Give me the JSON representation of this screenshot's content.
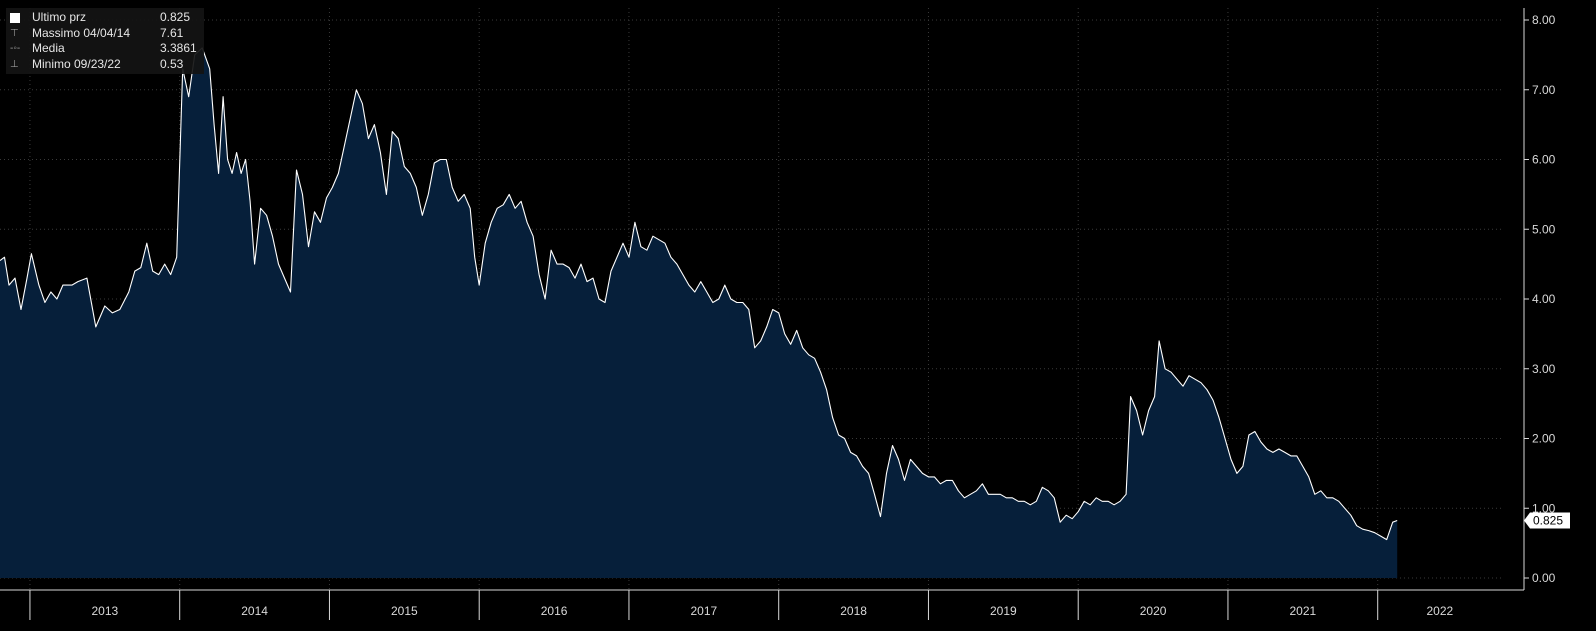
{
  "legend": {
    "rows": [
      {
        "label": "Ultimo prz",
        "value": "0.825",
        "marker": "last-price-swatch"
      },
      {
        "label": "Massimo 04/04/14",
        "value": "7.61",
        "marker": "max-marker-icon"
      },
      {
        "label": "Media",
        "value": "3.3861",
        "marker": "mean-marker-icon"
      },
      {
        "label": "Minimo 09/23/22",
        "value": "0.53",
        "marker": "min-marker-icon"
      }
    ]
  },
  "colors": {
    "background": "#000000",
    "area": "#061f3a",
    "line": "#ffffff",
    "grid": "#3a3a3a",
    "axis": "#d9d9d9",
    "tag_bg": "#ffffff",
    "tag_text": "#000000"
  },
  "chart_data": {
    "type": "area",
    "ylim": [
      0,
      8
    ],
    "y_ticks": [
      "0.00",
      "1.00",
      "2.00",
      "3.00",
      "4.00",
      "5.00",
      "6.00",
      "7.00",
      "8.00"
    ],
    "x_ticks": [
      "2013",
      "2014",
      "2015",
      "2016",
      "2017",
      "2018",
      "2019",
      "2020",
      "2021",
      "2022"
    ],
    "xlim": [
      2012.8,
      2022.83
    ],
    "last_value_label": "0.825",
    "grid": true,
    "series": [
      {
        "points": [
          [
            2012.8,
            4.55
          ],
          [
            2012.83,
            4.6
          ],
          [
            2012.86,
            4.2
          ],
          [
            2012.9,
            4.3
          ],
          [
            2012.94,
            3.85
          ],
          [
            2012.98,
            4.3
          ],
          [
            2013.01,
            4.65
          ],
          [
            2013.06,
            4.2
          ],
          [
            2013.1,
            3.95
          ],
          [
            2013.14,
            4.1
          ],
          [
            2013.18,
            4.0
          ],
          [
            2013.22,
            4.2
          ],
          [
            2013.28,
            4.2
          ],
          [
            2013.32,
            4.25
          ],
          [
            2013.38,
            4.3
          ],
          [
            2013.44,
            3.6
          ],
          [
            2013.5,
            3.9
          ],
          [
            2013.55,
            3.8
          ],
          [
            2013.6,
            3.85
          ],
          [
            2013.66,
            4.1
          ],
          [
            2013.7,
            4.4
          ],
          [
            2013.74,
            4.45
          ],
          [
            2013.78,
            4.8
          ],
          [
            2013.82,
            4.4
          ],
          [
            2013.86,
            4.35
          ],
          [
            2013.9,
            4.5
          ],
          [
            2013.94,
            4.35
          ],
          [
            2013.98,
            4.6
          ],
          [
            2014.02,
            7.3
          ],
          [
            2014.06,
            6.9
          ],
          [
            2014.1,
            7.5
          ],
          [
            2014.15,
            7.6
          ],
          [
            2014.2,
            7.3
          ],
          [
            2014.23,
            6.5
          ],
          [
            2014.26,
            5.8
          ],
          [
            2014.29,
            6.9
          ],
          [
            2014.32,
            6.0
          ],
          [
            2014.35,
            5.8
          ],
          [
            2014.38,
            6.1
          ],
          [
            2014.41,
            5.8
          ],
          [
            2014.44,
            6.0
          ],
          [
            2014.47,
            5.4
          ],
          [
            2014.5,
            4.5
          ],
          [
            2014.54,
            5.3
          ],
          [
            2014.58,
            5.2
          ],
          [
            2014.62,
            4.9
          ],
          [
            2014.66,
            4.5
          ],
          [
            2014.7,
            4.3
          ],
          [
            2014.74,
            4.1
          ],
          [
            2014.78,
            5.85
          ],
          [
            2014.82,
            5.5
          ],
          [
            2014.86,
            4.75
          ],
          [
            2014.9,
            5.25
          ],
          [
            2014.94,
            5.1
          ],
          [
            2014.98,
            5.45
          ],
          [
            2015.02,
            5.6
          ],
          [
            2015.06,
            5.8
          ],
          [
            2015.1,
            6.2
          ],
          [
            2015.14,
            6.6
          ],
          [
            2015.18,
            7.0
          ],
          [
            2015.22,
            6.8
          ],
          [
            2015.26,
            6.3
          ],
          [
            2015.3,
            6.5
          ],
          [
            2015.34,
            6.1
          ],
          [
            2015.38,
            5.5
          ],
          [
            2015.42,
            6.4
          ],
          [
            2015.46,
            6.3
          ],
          [
            2015.5,
            5.9
          ],
          [
            2015.54,
            5.8
          ],
          [
            2015.58,
            5.6
          ],
          [
            2015.62,
            5.2
          ],
          [
            2015.66,
            5.5
          ],
          [
            2015.7,
            5.95
          ],
          [
            2015.74,
            6.0
          ],
          [
            2015.78,
            6.0
          ],
          [
            2015.82,
            5.6
          ],
          [
            2015.86,
            5.4
          ],
          [
            2015.9,
            5.5
          ],
          [
            2015.94,
            5.3
          ],
          [
            2015.97,
            4.6
          ],
          [
            2016.0,
            4.2
          ],
          [
            2016.04,
            4.8
          ],
          [
            2016.08,
            5.1
          ],
          [
            2016.12,
            5.3
          ],
          [
            2016.16,
            5.35
          ],
          [
            2016.2,
            5.5
          ],
          [
            2016.24,
            5.3
          ],
          [
            2016.28,
            5.4
          ],
          [
            2016.32,
            5.1
          ],
          [
            2016.36,
            4.9
          ],
          [
            2016.4,
            4.35
          ],
          [
            2016.44,
            4.0
          ],
          [
            2016.48,
            4.7
          ],
          [
            2016.52,
            4.5
          ],
          [
            2016.56,
            4.5
          ],
          [
            2016.6,
            4.45
          ],
          [
            2016.64,
            4.3
          ],
          [
            2016.68,
            4.5
          ],
          [
            2016.72,
            4.25
          ],
          [
            2016.76,
            4.3
          ],
          [
            2016.8,
            4.0
          ],
          [
            2016.84,
            3.95
          ],
          [
            2016.88,
            4.4
          ],
          [
            2016.92,
            4.6
          ],
          [
            2016.96,
            4.8
          ],
          [
            2017.0,
            4.6
          ],
          [
            2017.04,
            5.1
          ],
          [
            2017.08,
            4.75
          ],
          [
            2017.12,
            4.7
          ],
          [
            2017.16,
            4.9
          ],
          [
            2017.2,
            4.85
          ],
          [
            2017.24,
            4.8
          ],
          [
            2017.28,
            4.6
          ],
          [
            2017.32,
            4.5
          ],
          [
            2017.36,
            4.35
          ],
          [
            2017.4,
            4.2
          ],
          [
            2017.44,
            4.1
          ],
          [
            2017.48,
            4.25
          ],
          [
            2017.52,
            4.1
          ],
          [
            2017.56,
            3.95
          ],
          [
            2017.6,
            4.0
          ],
          [
            2017.64,
            4.2
          ],
          [
            2017.68,
            4.0
          ],
          [
            2017.72,
            3.95
          ],
          [
            2017.76,
            3.95
          ],
          [
            2017.8,
            3.85
          ],
          [
            2017.84,
            3.3
          ],
          [
            2017.88,
            3.4
          ],
          [
            2017.92,
            3.6
          ],
          [
            2017.96,
            3.85
          ],
          [
            2018.0,
            3.8
          ],
          [
            2018.04,
            3.5
          ],
          [
            2018.08,
            3.35
          ],
          [
            2018.12,
            3.55
          ],
          [
            2018.16,
            3.3
          ],
          [
            2018.2,
            3.2
          ],
          [
            2018.24,
            3.15
          ],
          [
            2018.28,
            2.95
          ],
          [
            2018.32,
            2.7
          ],
          [
            2018.36,
            2.3
          ],
          [
            2018.4,
            2.05
          ],
          [
            2018.44,
            2.0
          ],
          [
            2018.48,
            1.8
          ],
          [
            2018.52,
            1.75
          ],
          [
            2018.56,
            1.6
          ],
          [
            2018.6,
            1.5
          ],
          [
            2018.64,
            1.2
          ],
          [
            2018.68,
            0.88
          ],
          [
            2018.72,
            1.5
          ],
          [
            2018.76,
            1.9
          ],
          [
            2018.8,
            1.7
          ],
          [
            2018.84,
            1.4
          ],
          [
            2018.88,
            1.7
          ],
          [
            2018.92,
            1.6
          ],
          [
            2018.96,
            1.5
          ],
          [
            2019.0,
            1.45
          ],
          [
            2019.04,
            1.45
          ],
          [
            2019.08,
            1.35
          ],
          [
            2019.12,
            1.4
          ],
          [
            2019.16,
            1.4
          ],
          [
            2019.2,
            1.25
          ],
          [
            2019.24,
            1.15
          ],
          [
            2019.28,
            1.2
          ],
          [
            2019.32,
            1.25
          ],
          [
            2019.36,
            1.35
          ],
          [
            2019.4,
            1.2
          ],
          [
            2019.44,
            1.2
          ],
          [
            2019.48,
            1.2
          ],
          [
            2019.52,
            1.15
          ],
          [
            2019.56,
            1.15
          ],
          [
            2019.6,
            1.1
          ],
          [
            2019.64,
            1.1
          ],
          [
            2019.68,
            1.05
          ],
          [
            2019.72,
            1.1
          ],
          [
            2019.76,
            1.3
          ],
          [
            2019.8,
            1.25
          ],
          [
            2019.84,
            1.15
          ],
          [
            2019.88,
            0.8
          ],
          [
            2019.92,
            0.9
          ],
          [
            2019.96,
            0.85
          ],
          [
            2020.0,
            0.95
          ],
          [
            2020.04,
            1.1
          ],
          [
            2020.08,
            1.05
          ],
          [
            2020.12,
            1.15
          ],
          [
            2020.16,
            1.1
          ],
          [
            2020.2,
            1.1
          ],
          [
            2020.24,
            1.05
          ],
          [
            2020.28,
            1.1
          ],
          [
            2020.32,
            1.2
          ],
          [
            2020.35,
            2.6
          ],
          [
            2020.39,
            2.4
          ],
          [
            2020.43,
            2.05
          ],
          [
            2020.47,
            2.4
          ],
          [
            2020.51,
            2.6
          ],
          [
            2020.54,
            3.4
          ],
          [
            2020.58,
            3.0
          ],
          [
            2020.62,
            2.95
          ],
          [
            2020.66,
            2.85
          ],
          [
            2020.7,
            2.75
          ],
          [
            2020.74,
            2.9
          ],
          [
            2020.78,
            2.85
          ],
          [
            2020.82,
            2.8
          ],
          [
            2020.86,
            2.7
          ],
          [
            2020.9,
            2.55
          ],
          [
            2020.94,
            2.3
          ],
          [
            2020.98,
            2.0
          ],
          [
            2021.02,
            1.7
          ],
          [
            2021.06,
            1.5
          ],
          [
            2021.1,
            1.6
          ],
          [
            2021.14,
            2.05
          ],
          [
            2021.18,
            2.1
          ],
          [
            2021.22,
            1.95
          ],
          [
            2021.26,
            1.85
          ],
          [
            2021.3,
            1.8
          ],
          [
            2021.34,
            1.85
          ],
          [
            2021.38,
            1.8
          ],
          [
            2021.42,
            1.75
          ],
          [
            2021.46,
            1.75
          ],
          [
            2021.5,
            1.6
          ],
          [
            2021.54,
            1.45
          ],
          [
            2021.58,
            1.2
          ],
          [
            2021.62,
            1.25
          ],
          [
            2021.66,
            1.15
          ],
          [
            2021.7,
            1.15
          ],
          [
            2021.74,
            1.1
          ],
          [
            2021.78,
            1.0
          ],
          [
            2021.82,
            0.9
          ],
          [
            2021.86,
            0.75
          ],
          [
            2021.9,
            0.7
          ],
          [
            2021.94,
            0.68
          ],
          [
            2021.98,
            0.65
          ],
          [
            2022.02,
            0.6
          ],
          [
            2022.06,
            0.55
          ],
          [
            2022.1,
            0.8
          ],
          [
            2022.13,
            0.825
          ]
        ]
      }
    ]
  }
}
